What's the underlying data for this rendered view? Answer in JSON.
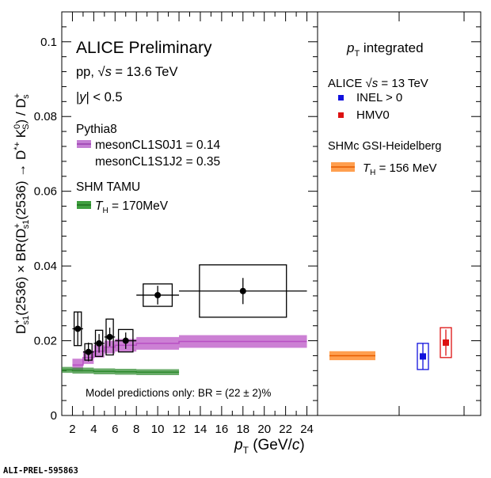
{
  "chart_data": {
    "type": "scatter",
    "title": "ALICE Preliminary",
    "system": "pp, √s = 13.6 TeV",
    "rapidity": "|y| < 0.5",
    "ylabel": "D⁺s1(2536) × BR(D⁺s1(2536) → D*⁺ K⁰S) / D⁺s",
    "xlabel": "pT (GeV/c)",
    "ylim": [
      0,
      0.108
    ],
    "yticks": [
      0,
      0.02,
      0.04,
      0.06,
      0.08,
      0.1
    ],
    "ytick_labels": [
      "0",
      "0.02",
      "0.04",
      "0.06",
      "0.08",
      "0.1"
    ],
    "xlim": [
      1,
      25
    ],
    "xticks": [
      2,
      4,
      6,
      8,
      10,
      12,
      14,
      16,
      18,
      20,
      22,
      24
    ],
    "xtick_labels": [
      "2",
      "4",
      "6",
      "8",
      "10",
      "12",
      "14",
      "16",
      "18",
      "20",
      "22",
      "24"
    ],
    "grid": false,
    "data_points": [
      {
        "x": 2.5,
        "xlo": 2,
        "xhi": 3,
        "y": 0.0232,
        "stat": 0.0045,
        "syst": 0.0045
      },
      {
        "x": 3.5,
        "xlo": 3,
        "xhi": 4,
        "y": 0.017,
        "stat": 0.0025,
        "syst": 0.0022
      },
      {
        "x": 4.5,
        "xlo": 4,
        "xhi": 5,
        "y": 0.0193,
        "stat": 0.0025,
        "syst": 0.0035
      },
      {
        "x": 5.5,
        "xlo": 5,
        "xhi": 6,
        "y": 0.021,
        "stat": 0.0025,
        "syst": 0.0048
      },
      {
        "x": 7.0,
        "xlo": 6,
        "xhi": 8,
        "y": 0.02,
        "stat": 0.0022,
        "syst": 0.003
      },
      {
        "x": 10.0,
        "xlo": 8,
        "xhi": 12,
        "y": 0.0322,
        "stat": 0.0025,
        "syst": 0.003
      },
      {
        "x": 18.0,
        "xlo": 12,
        "xhi": 24,
        "y": 0.0333,
        "stat": 0.0035,
        "syst": 0.007
      }
    ],
    "models": [
      {
        "name": "mesonCL1S0J1 = 0.14",
        "name2": "mesonCL1S1J2 = 0.35",
        "group": "Pythia8",
        "color": "#b84fc4",
        "x": [
          2,
          3,
          4,
          5,
          6,
          8,
          12,
          24
        ],
        "y": [
          0.0135,
          0.0155,
          0.0172,
          0.0183,
          0.0188,
          0.0193,
          0.0198,
          0.0198
        ],
        "band": 0.0017
      },
      {
        "name": "TH = 170MeV",
        "group": "SHM TAMU",
        "color": "#2e8b2e",
        "x": [
          1,
          2,
          4,
          6,
          8,
          10,
          12
        ],
        "y": [
          0.0122,
          0.012,
          0.0118,
          0.0117,
          0.0116,
          0.0116,
          0.0116
        ],
        "band": 0.0008
      }
    ],
    "integrated": {
      "title": "pT integrated",
      "alice_label": "ALICE   √s = 13 TeV",
      "shm_title": "SHMc GSI-Heidelberg",
      "shm_label": "TH = 156 MeV",
      "shm_value": 0.016,
      "shm_band": 0.0012,
      "shm_color": "#ff7f1f",
      "points": [
        {
          "name": "INEL > 0",
          "color": "#1111dd",
          "y": 0.0158,
          "stat": 0.0035,
          "syst": 0.0035
        },
        {
          "name": "HMV0",
          "color": "#dd1111",
          "y": 0.0195,
          "stat": 0.0035,
          "syst": 0.004
        }
      ]
    },
    "annotation": "Model predictions only: BR = (22 ± 2)%",
    "legend_placement": "top-left"
  },
  "figure_id": "ALI-PREL-595863"
}
